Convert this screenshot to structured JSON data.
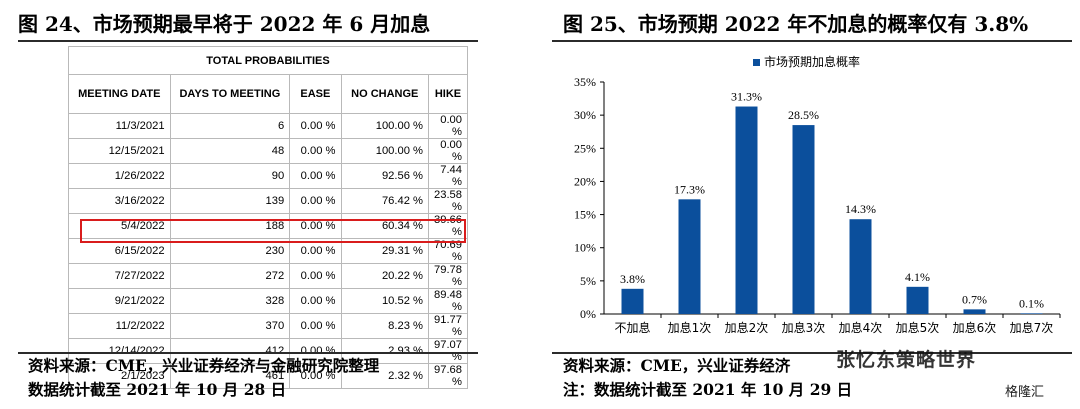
{
  "left": {
    "title": "图 24、市场预期最早将于 2022 年 6 月加息",
    "table": {
      "top_header": "TOTAL PROBABILITIES",
      "columns": [
        "MEETING DATE",
        "DAYS TO MEETING",
        "EASE",
        "NO CHANGE",
        "HIKE"
      ],
      "rows": [
        [
          "11/3/2021",
          "6",
          "0.00 %",
          "100.00 %",
          "0.00 %"
        ],
        [
          "12/15/2021",
          "48",
          "0.00 %",
          "100.00 %",
          "0.00 %"
        ],
        [
          "1/26/2022",
          "90",
          "0.00 %",
          "92.56 %",
          "7.44 %"
        ],
        [
          "3/16/2022",
          "139",
          "0.00 %",
          "76.42 %",
          "23.58 %"
        ],
        [
          "5/4/2022",
          "188",
          "0.00 %",
          "60.34 %",
          "39.66 %"
        ],
        [
          "6/15/2022",
          "230",
          "0.00 %",
          "29.31 %",
          "70.69 %"
        ],
        [
          "7/27/2022",
          "272",
          "0.00 %",
          "20.22 %",
          "79.78 %"
        ],
        [
          "9/21/2022",
          "328",
          "0.00 %",
          "10.52 %",
          "89.48 %"
        ],
        [
          "11/2/2022",
          "370",
          "0.00 %",
          "8.23 %",
          "91.77 %"
        ],
        [
          "12/14/2022",
          "412",
          "0.00 %",
          "2.93 %",
          "97.07 %"
        ],
        [
          "2/1/2023",
          "461",
          "0.00 %",
          "2.32 %",
          "97.68 %"
        ]
      ],
      "highlight_color": "#d91c1c"
    },
    "source_line1": "资料来源：CME，兴业证券经济与金融研究院整理",
    "source_line2": "数据统计截至 2021 年 10 月 28 日"
  },
  "right": {
    "title": "图 25、市场预期 2022 年不加息的概率仅有 3.8%",
    "source_line1": "资料来源：CME，兴业证券经济",
    "source_line2": "注：数据统计截至 2021 年 10 月 29 日"
  },
  "chart_data": {
    "type": "bar",
    "categories": [
      "不加息",
      "加息1次",
      "加息2次",
      "加息3次",
      "加息4次",
      "加息5次",
      "加息6次",
      "加息7次"
    ],
    "series": [
      {
        "name": "市场预期加息概率",
        "values": [
          3.8,
          17.3,
          31.3,
          28.5,
          14.3,
          4.1,
          0.7,
          0.1
        ],
        "color": "#0b4f9c"
      }
    ],
    "data_labels": [
      "3.8%",
      "17.3%",
      "31.3%",
      "28.5%",
      "14.3%",
      "4.1%",
      "0.7%",
      "0.1%"
    ],
    "yticks": [
      0,
      5,
      10,
      15,
      20,
      25,
      30,
      35
    ],
    "ytick_labels": [
      "0%",
      "5%",
      "10%",
      "15%",
      "20%",
      "25%",
      "30%",
      "35%"
    ],
    "ylim": [
      0,
      35
    ],
    "grid": false,
    "legend": "top-center"
  },
  "watermark": "张忆东策略世界",
  "brand": "格隆汇"
}
